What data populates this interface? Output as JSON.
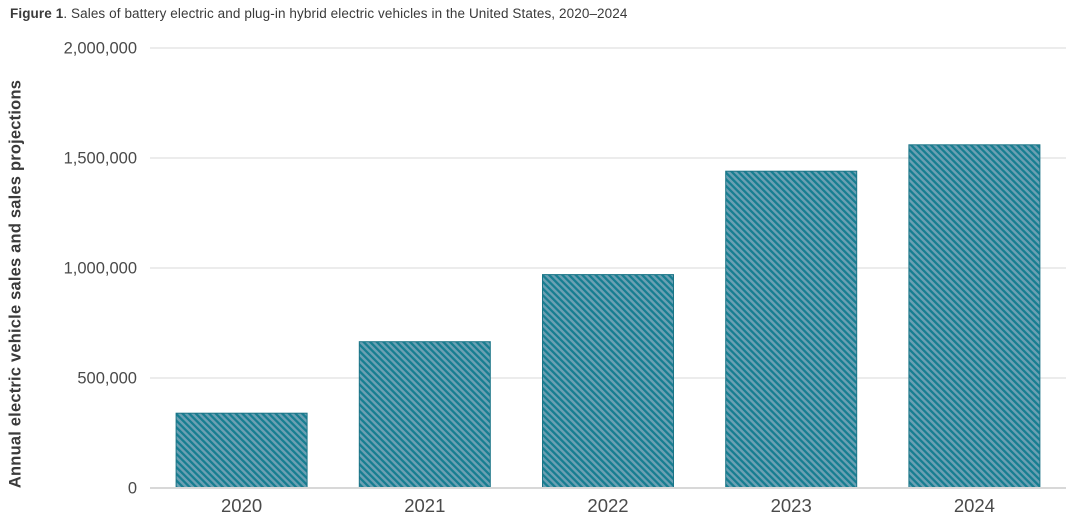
{
  "header": {
    "prefix": "Figure 1",
    "rest": ". Sales of battery electric and plug-in hybrid electric vehicles in the United States, 2020–2024"
  },
  "chart_data": {
    "type": "bar",
    "title": "Figure 1. Sales of battery electric and plug-in hybrid electric vehicles in the United States, 2020–2024",
    "categories": [
      "2020",
      "2021",
      "2022",
      "2023",
      "2024"
    ],
    "values": [
      340000,
      665000,
      970000,
      1440000,
      1560000
    ],
    "xlabel": "",
    "ylabel": "Annual electric vehicle sales and sales projections",
    "ylim": [
      0,
      2000000
    ],
    "yticks": [
      0,
      500000,
      1000000,
      1500000,
      2000000
    ],
    "ytick_labels": [
      "0",
      "500,000",
      "1,000,000",
      "1,500,000",
      "2,000,000"
    ],
    "grid": true,
    "legend": false,
    "bar_style": "diagonal-hatch-forward",
    "colors": {
      "bar_base": "#6BA0B3",
      "bar_stripe": "#177E91",
      "bar_outline": "#1B7487",
      "gridline": "#ececec",
      "baseline": "#d8d8d8",
      "tick_text": "#4a4a4a",
      "title_text": "#3a3a3a"
    }
  }
}
